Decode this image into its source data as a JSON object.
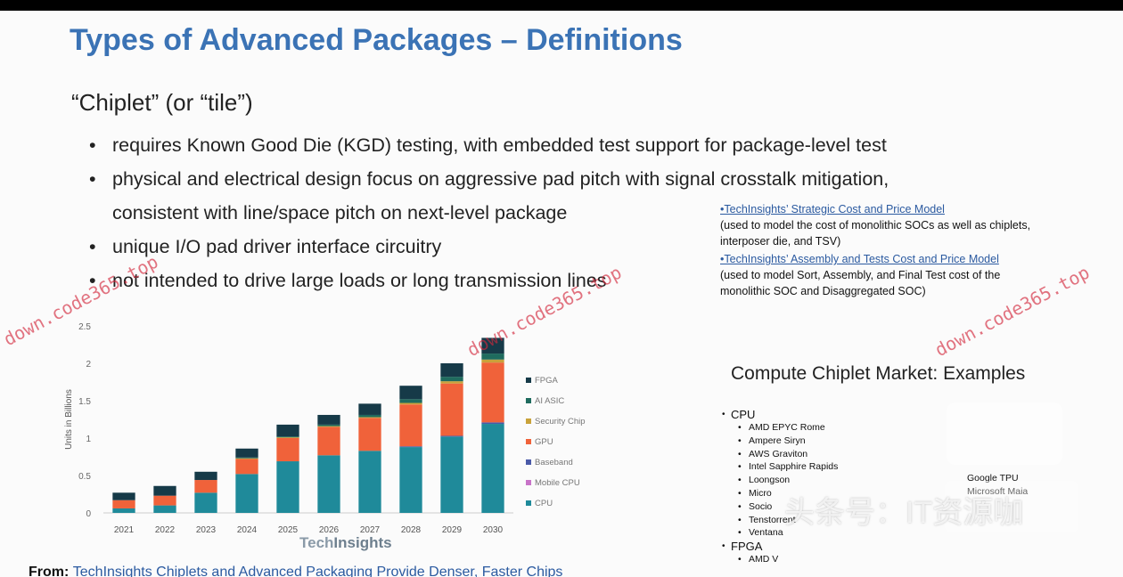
{
  "slide": {
    "title": "Types of Advanced Packages – Definitions",
    "subtitle": "“Chiplet” (or “tile”)",
    "bullet_char": "•",
    "bullets": [
      "requires Known Good Die (KGD) testing, with embedded test support for package-level test",
      "physical and electrical design focus on aggressive pad pitch with signal crosstalk mitigation,",
      "consistent with line/space pitch on next-level package",
      "unique I/O pad driver interface circuitry",
      "not intended to drive large loads or long transmission lines"
    ]
  },
  "model_notes": {
    "strategic_link": "•TechInsights’ Strategic Cost and Price Model",
    "strategic_desc_1": "(used to model the cost of monolithic SOCs as well as chiplets,",
    "strategic_desc_2": "interposer die, and TSV)",
    "assembly_link": "•TechInsights’ Assembly and Tests Cost and Price Model",
    "assembly_desc_1": "(used to model Sort, Assembly, and Final Test cost of the",
    "assembly_desc_2": "monolithic SOC and Disaggregated SOC)"
  },
  "chart_brand": {
    "part1": "Tech",
    "part2": "Insights"
  },
  "chart_data": {
    "type": "bar",
    "stacked": true,
    "ylabel": "Units in Billions",
    "ylim": [
      0,
      2.5
    ],
    "yticks": [
      "0",
      "0.5",
      "1",
      "1.5",
      "2",
      "2.5"
    ],
    "categories": [
      "2021",
      "2022",
      "2023",
      "2024",
      "2025",
      "2026",
      "2027",
      "2028",
      "2029",
      "2030"
    ],
    "series": [
      {
        "name": "CPU",
        "color": "#1f8a9a",
        "values": [
          0.06,
          0.1,
          0.27,
          0.52,
          0.69,
          0.77,
          0.83,
          0.88,
          1.02,
          1.19
        ]
      },
      {
        "name": "Mobile CPU",
        "color": "#c873c8",
        "values": [
          0.0,
          0.0,
          0.0,
          0.0,
          0.0,
          0.0,
          0.0,
          0.0,
          0.0,
          0.0
        ]
      },
      {
        "name": "Baseband",
        "color": "#4a5aa8",
        "values": [
          0.0,
          0.0,
          0.0,
          0.0,
          0.0,
          0.0,
          0.0,
          0.01,
          0.01,
          0.02
        ]
      },
      {
        "name": "GPU",
        "color": "#f0623a",
        "values": [
          0.11,
          0.13,
          0.17,
          0.2,
          0.31,
          0.38,
          0.44,
          0.56,
          0.7,
          0.8
        ]
      },
      {
        "name": "Security Chip",
        "color": "#c9a23a",
        "values": [
          0.0,
          0.0,
          0.0,
          0.01,
          0.01,
          0.01,
          0.01,
          0.02,
          0.03,
          0.04
        ]
      },
      {
        "name": "AI ASIC",
        "color": "#1f6b5e",
        "values": [
          0.0,
          0.0,
          0.0,
          0.01,
          0.01,
          0.02,
          0.03,
          0.05,
          0.06,
          0.08
        ]
      },
      {
        "name": "FPGA",
        "color": "#163a48",
        "values": [
          0.1,
          0.13,
          0.11,
          0.12,
          0.16,
          0.13,
          0.15,
          0.18,
          0.18,
          0.21
        ]
      }
    ],
    "legend_order": [
      "FPGA",
      "AI ASIC",
      "Security Chip",
      "GPU",
      "Baseband",
      "Mobile CPU",
      "CPU"
    ],
    "legend_position": "right",
    "grid": false
  },
  "market": {
    "title": "Compute Chiplet Market: Examples",
    "cpu_label": "CPU",
    "cpu_items": [
      "AMD EPYC Rome",
      "Ampere Siryn",
      "AWS Graviton",
      "Intel Sapphire Rapids",
      "Loongson",
      "Micro",
      "Socio",
      "Tenstorrent",
      "Ventana"
    ],
    "fpga_label": "FPGA",
    "fpga_items": [
      "AMD V"
    ],
    "right_items": [
      "Google TPU",
      "Microsoft Maia"
    ]
  },
  "source": {
    "prefix": "From: ",
    "link": "TechInsights Chiplets and Advanced Packaging Provide Denser, Faster Chips"
  },
  "watermarks": [
    "down.code365.top",
    "down.code365.top",
    "down.code365.top"
  ],
  "overlay_text": "头条号：IT资源咖"
}
